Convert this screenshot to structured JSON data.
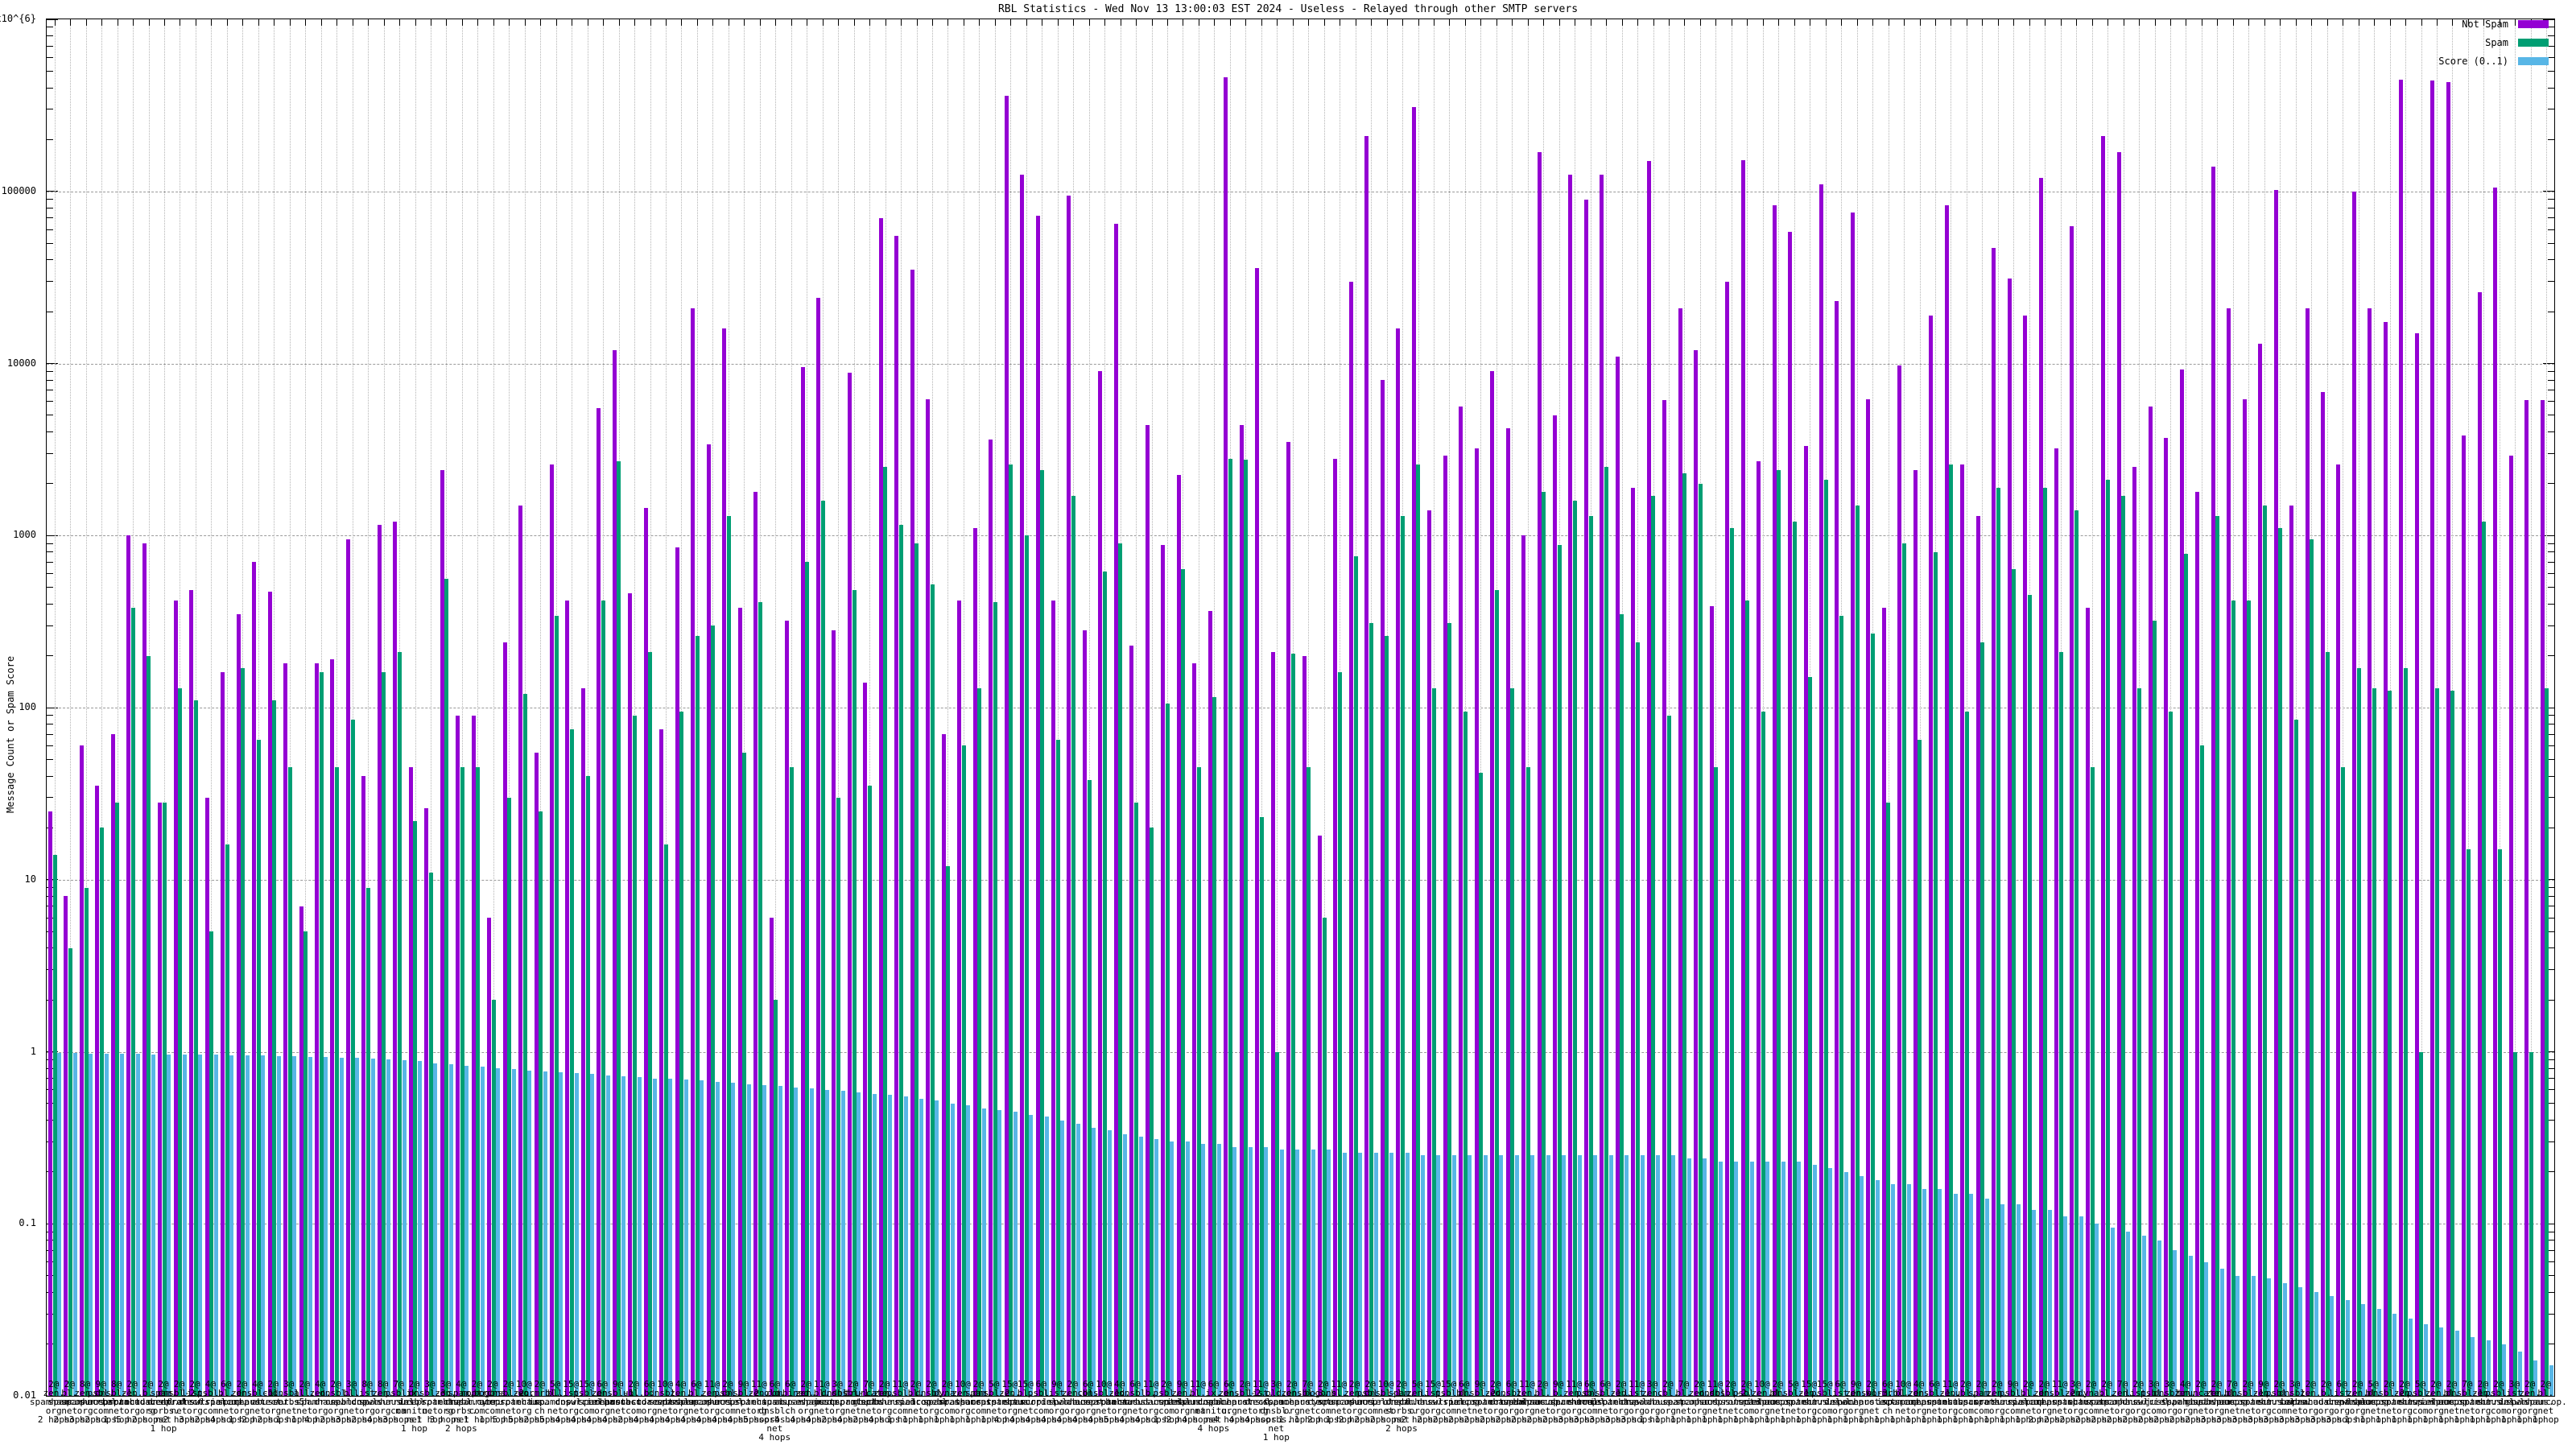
{
  "chart_data": {
    "type": "bar",
    "title": "RBL Statistics - Wed Nov 13 13:00:03 EST 2024 - Useless - Relayed through other SMTP servers",
    "ylabel": "Message Count or Spam Score",
    "xlabel": "",
    "scale": "log",
    "ylim": [
      0.01,
      1000000
    ],
    "grid": {
      "horizontal": "dashed-major-decades",
      "vertical": "dotted-per-cluster"
    },
    "legend_position": "top-right-inside",
    "x_label_format": "count@rbl-hostname N hops (label wrapped onto stacked lines)",
    "yticks": [
      {
        "value": 1000000,
        "label": "1x10^{6}"
      },
      {
        "value": 100000,
        "label": "100000"
      },
      {
        "value": 10000,
        "label": "10000"
      },
      {
        "value": 1000,
        "label": "1000"
      },
      {
        "value": 100,
        "label": "100"
      },
      {
        "value": 10,
        "label": "10"
      },
      {
        "value": 1,
        "label": "1"
      },
      {
        "value": 0.1,
        "label": "0.1"
      },
      {
        "value": 0.01,
        "label": "0.01"
      }
    ],
    "series": [
      {
        "name": "Not Spam",
        "color": "#9400d3"
      },
      {
        "name": "Spam",
        "color": "#009e73"
      },
      {
        "name": "Score (0..1)",
        "color": "#58b6e6"
      }
    ],
    "clusters": [
      [
        "2@zen.spamhaus.org 2 hops",
        25,
        14,
        0.98
      ],
      [
        "2@bl.spamcop.net 2 hops",
        8,
        4,
        0.98
      ],
      [
        "8@zen.spamhaus.org 3 hops",
        60,
        9,
        0.97
      ],
      [
        "9@psbl.surriel.com 2 hops",
        35,
        20,
        0.97
      ],
      [
        "8@dnsbl-1.uceprotect.net 1 hop",
        70,
        28,
        0.97
      ],
      [
        "2@zen.spamhaus.org 5 hops",
        1000,
        380,
        0.97
      ],
      [
        "2@b.barracudacentral.org 2 hops",
        900,
        200,
        0.96
      ],
      [
        "2@spam.dnsbl.sorbs.net 1 hop",
        28,
        28,
        0.96
      ],
      [
        "2@dnsbl-2.uceprotect.net 2 hops",
        420,
        130,
        0.96
      ],
      [
        "2@list.dnswl.org 3 hops",
        480,
        110,
        0.96
      ],
      [
        "4@psbl.surriel.com 2 hops",
        30,
        5,
        0.96
      ],
      [
        "6@bl.spamcop.net 4 hops",
        160,
        16,
        0.95
      ],
      [
        "2@zen.spamhaus.org 1 hop",
        350,
        170,
        0.95
      ],
      [
        "4@dnsbl-1.uceprotect.net 2 hops",
        700,
        65,
        0.95
      ],
      [
        "2@cbl.abuseat.org 2 hops",
        470,
        110,
        0.94
      ],
      [
        "3@dnsbl.sorbs.net 1 hop",
        180,
        45,
        0.94
      ],
      [
        "2@all.s5h.net 1 hop",
        7,
        5,
        0.93
      ],
      [
        "4@zen.spamhaus.org 4 hops",
        180,
        160,
        0.93
      ],
      [
        "2@dnsbl.dronebl.org 2 hops",
        190,
        45,
        0.92
      ],
      [
        "3@bl.spamcop.net 3 hops",
        950,
        85,
        0.92
      ],
      [
        "8@list.dnswl.org 2 hops",
        40,
        9,
        0.91
      ],
      [
        "8@zen.spamhaus.org 4 hops",
        1150,
        160,
        0.9
      ],
      [
        "7@psbl.surriel.com 3 hops",
        1200,
        210,
        0.89
      ],
      [
        "2@ix.dnsbl.manitu.net 1 hop",
        45,
        22,
        0.88
      ],
      [
        "3@dnsbl-3.uceprotect.net 1 hop",
        26,
        11,
        0.86
      ],
      [
        "3@zen.spamhaus.org 3 hops",
        2400,
        560,
        0.85
      ],
      [
        "4@spam.dnsbl.sorbs.net 2 hops",
        90,
        45,
        0.83
      ],
      [
        "2@noptr.spamrats.com 1 hop",
        90,
        45,
        0.82
      ],
      [
        "2@bogons.cymru.com 1 hop",
        6,
        2,
        0.8
      ],
      [
        "2@dnsbl-2.uceprotect.net 5 hops",
        240,
        30,
        0.79
      ],
      [
        "10@zen.spamhaus.org 5 hops",
        1500,
        120,
        0.78
      ],
      [
        "2@wormrbl.imp.ch 2 hops",
        55,
        25,
        0.77
      ],
      [
        "5@bl.spamcop.net 5 hops",
        2600,
        340,
        0.76
      ],
      [
        "15@list.dnswl.org 4 hops",
        420,
        75,
        0.75
      ],
      [
        "15@psbl.surriel.com 4 hops",
        130,
        40,
        0.74
      ],
      [
        "6@zen.spamhaus.org 4 hops",
        5500,
        420,
        0.73
      ],
      [
        "9@dnsbl-1.uceprotect.net 4 hops",
        12000,
        2700,
        0.72
      ],
      [
        "2@ubl.unsubscore.com 2 hops",
        460,
        90,
        0.71
      ],
      [
        "6@b.barracudacentral.org 4 hops",
        1450,
        210,
        0.7
      ],
      [
        "10@dnsbl.sorbs.net 4 hops",
        75,
        16,
        0.7
      ],
      [
        "4@zen.spamhaus.org 4 hops",
        850,
        95,
        0.69
      ],
      [
        "6@bl.spamcop.net 4 hops",
        21000,
        260,
        0.68
      ],
      [
        "11@zen.spamhaus.org 4 hops",
        3400,
        300,
        0.67
      ],
      [
        "2@psbl.surriel.com 4 hops",
        16000,
        1300,
        0.66
      ],
      [
        "9@dnsbl-2.uceprotect.net 4 hops",
        380,
        55,
        0.65
      ],
      [
        "11@zen.spamhaus.org 5 hops",
        1800,
        410,
        0.64
      ],
      [
        "6@old.spam.dnsbl.sorbs.net 4 hops",
        6,
        2,
        0.63
      ],
      [
        "6@combined.abuse.ch 4 hops",
        320,
        45,
        0.62
      ],
      [
        "2@zen.spamhaus.org 4 hops",
        9500,
        700,
        0.61
      ],
      [
        "11@bl.spamcop.net 4 hops",
        24000,
        1600,
        0.6
      ],
      [
        "3@dnsbl.justspam.org 2 hops",
        280,
        30,
        0.59
      ],
      [
        "2@dnsbl-1.uceprotect.net 4 hops",
        8800,
        480,
        0.58
      ],
      [
        "7@truncate.gbudb.net 2 hops",
        140,
        35,
        0.57
      ],
      [
        "2@zen.spamhaus.org 4 hops",
        70000,
        2500,
        0.56
      ],
      [
        "11@psbl.surriel.com 1 hop",
        55000,
        1150,
        0.55
      ],
      [
        "2@bl.spamcop.net 1 hop",
        35000,
        900,
        0.53
      ],
      [
        "2@dnsbl.dronebl.org 1 hop",
        6200,
        520,
        0.52
      ],
      [
        "2@dyna.spamrats.com 1 hop",
        70,
        12,
        0.5
      ],
      [
        "10@zen.spamhaus.org 1 hop",
        420,
        60,
        0.49
      ],
      [
        "2@spam.spamrats.com 1 hop",
        1100,
        130,
        0.47
      ],
      [
        "5@dnsbl-2.uceprotect.net 1 hop",
        3600,
        410,
        0.46
      ],
      [
        "15@zen.spamhaus.org 4 hops",
        360000,
        2600,
        0.45
      ],
      [
        "15@bl.spamcop.net 4 hops",
        125000,
        1000,
        0.43
      ],
      [
        "6@psbl.surriel.com 4 hops",
        72000,
        2400,
        0.42
      ],
      [
        "9@list.dnswl.org 4 hops",
        420,
        65,
        0.4
      ],
      [
        "2@zen.spamhaus.org 4 hops",
        95000,
        1700,
        0.38
      ],
      [
        "6@cbl.abuseat.org 4 hops",
        280,
        38,
        0.36
      ],
      [
        "10@dnsbl-1.uceprotect.net 4 hops",
        9000,
        620,
        0.35
      ],
      [
        "4@zen.spamhaus.org 5 hops",
        65000,
        900,
        0.33
      ],
      [
        "6@dnsbl.sorbs.net 4 hops",
        230,
        28,
        0.32
      ],
      [
        "11@b.barracudacentral.org 4 hops",
        4400,
        20,
        0.31
      ],
      [
        "2@psbl.surriel.com 1 hop",
        880,
        105,
        0.3
      ],
      [
        "9@zen.spamhaus.org 2 hops",
        2250,
        640,
        0.3
      ],
      [
        "11@bl.spamcop.net 4 hops",
        180,
        45,
        0.29
      ],
      [
        "6@ix.dnsbl.manitu.net 4 hops",
        365,
        115,
        0.29
      ],
      [
        "6@zen.spamhaus.org 4 hops",
        460000,
        2800,
        0.28
      ],
      [
        "2@dnsbl-2.uceprotect.net 4 hops",
        4400,
        2750,
        0.28
      ],
      [
        "11@list.dnswl.org 4 hops",
        35700,
        23,
        0.28
      ],
      [
        "3@old.spam.dnsbl.sorbs.net 1 hop",
        210,
        1,
        0.27
      ],
      [
        "2@zen.spamhaus.org 1 hop",
        3500,
        205,
        0.27
      ],
      [
        "7@dnsbl-3.uceprotect.net 1 hop",
        200,
        45,
        0.27
      ],
      [
        "2@bogons.cymru.com 2 hops",
        18,
        6,
        0.27
      ],
      [
        "11@bl.spamcop.net 1 hop",
        2800,
        160,
        0.26
      ],
      [
        "2@zen.spamhaus.org 2 hops",
        30000,
        760,
        0.26
      ],
      [
        "2@psbl.surriel.com 2 hops",
        210000,
        310,
        0.26
      ],
      [
        "10@dnsbl-1.uceprotect.net 2 hops",
        8000,
        260,
        0.26
      ],
      [
        "2@spam.dnsbl.sorbs.net 2 hops",
        16000,
        1300,
        0.26
      ],
      [
        "5@zen.spamhaus.org 2 hops",
        310000,
        2600,
        0.25
      ],
      [
        "15@list.dnswl.org 2 hops",
        1400,
        130,
        0.25
      ],
      [
        "15@psbl.surriel.com 2 hops",
        2900,
        310,
        0.25
      ],
      [
        "6@bl.spamcop.net 2 hops",
        5600,
        95,
        0.25
      ],
      [
        "9@dnsbl-2.uceprotect.net 2 hops",
        3200,
        42,
        0.25
      ],
      [
        "2@zen.spamhaus.org 2 hops",
        9000,
        480,
        0.25
      ],
      [
        "6@dnsbl.dronebl.org 2 hops",
        4200,
        130,
        0.25
      ],
      [
        "11@zen.spamhaus.org 2 hops",
        1000,
        45,
        0.25
      ],
      [
        "2@bl.spamcop.net 2 hops",
        170000,
        1800,
        0.25
      ],
      [
        "9@b.barracudacentral.org 2 hops",
        5000,
        880,
        0.25
      ],
      [
        "11@zen.spamhaus.org 3 hops",
        125000,
        1600,
        0.25
      ],
      [
        "6@psbl.surriel.com 3 hops",
        90000,
        1300,
        0.25
      ],
      [
        "6@dnsbl-1.uceprotect.net 3 hops",
        125000,
        2500,
        0.25
      ],
      [
        "2@zen.spamhaus.org 3 hops",
        11000,
        350,
        0.25
      ],
      [
        "11@list.dnswl.org 3 hops",
        1900,
        240,
        0.25
      ],
      [
        "3@zen.spamhaus.org 1 hop",
        150000,
        1700,
        0.25
      ],
      [
        "2@cbl.abuseat.org 1 hop",
        6100,
        90,
        0.25
      ],
      [
        "7@bl.spamcop.net 1 hop",
        21000,
        2300,
        0.24
      ],
      [
        "2@zen.spamhaus.org 1 hop",
        12000,
        2000,
        0.24
      ],
      [
        "11@dnsbl.sorbs.net 1 hop",
        390,
        45,
        0.23
      ],
      [
        "2@dnsbl-2.uceprotect.net 1 hop",
        30000,
        1100,
        0.23
      ],
      [
        "2@psbl.surriel.com 1 hop",
        152000,
        420,
        0.23
      ],
      [
        "10@zen.spamhaus.org 1 hop",
        2700,
        95,
        0.23
      ],
      [
        "2@bl.spamcop.net 1 hop",
        83000,
        2400,
        0.23
      ],
      [
        "5@dnsbl-1.uceprotect.net 1 hop",
        58000,
        1200,
        0.23
      ],
      [
        "15@zen.spamhaus.org 1 hop",
        3300,
        150,
        0.22
      ],
      [
        "15@psbl.surriel.com 1 hop",
        110000,
        2100,
        0.21
      ],
      [
        "6@list.dnswl.org 1 hop",
        23000,
        340,
        0.2
      ],
      [
        "9@zen.spamhaus.org 1 hop",
        75000,
        1500,
        0.19
      ],
      [
        "2@dnsbl-3.uceprotect.net 1 hop",
        6200,
        270,
        0.18
      ],
      [
        "6@wormrbl.imp.ch 1 hop",
        380,
        28,
        0.17
      ],
      [
        "10@bl.spamcop.net 1 hop",
        9700,
        900,
        0.17
      ],
      [
        "4@zen.spamhaus.org 1 hop",
        2400,
        65,
        0.16
      ],
      [
        "6@dnsbl-1.uceprotect.net 1 hop",
        19000,
        800,
        0.16
      ],
      [
        "11@zen.spamhaus.org 1 hop",
        83000,
        2600,
        0.15
      ],
      [
        "2@ubl.unsubscore.com 1 hop",
        2600,
        95,
        0.15
      ],
      [
        "2@spam.spamrats.com 1 hop",
        1300,
        240,
        0.14
      ],
      [
        "2@zen.spamhaus.org 1 hop",
        47000,
        1900,
        0.13
      ],
      [
        "9@psbl.surriel.com 1 hop",
        31000,
        640,
        0.13
      ],
      [
        "2@bl.spamcop.net 1 hop",
        19000,
        450,
        0.12
      ],
      [
        "2@zen.spamhaus.org 2 hops",
        120000,
        1900,
        0.12
      ],
      [
        "11@dnsbl-2.uceprotect.net 2 hops",
        3200,
        210,
        0.11
      ],
      [
        "3@zen.spamhaus.org 2 hops",
        63000,
        1400,
        0.11
      ],
      [
        "2@dyna.spamrats.com 2 hops",
        380,
        45,
        0.1
      ],
      [
        "2@bl.spamcop.net 2 hops",
        210000,
        2100,
        0.095
      ],
      [
        "7@zen.spamhaus.org 2 hops",
        170000,
        1700,
        0.09
      ],
      [
        "2@list.dnswl.org 2 hops",
        2500,
        130,
        0.085
      ],
      [
        "3@psbl.surriel.com 2 hops",
        5600,
        320,
        0.08
      ],
      [
        "3@dnsbl.justspam.org 2 hops",
        3700,
        95,
        0.07
      ],
      [
        "4@zen.spamhaus.org 2 hops",
        9200,
        780,
        0.065
      ],
      [
        "2@truncate.gbudb.net 2 hops",
        1800,
        60,
        0.06
      ],
      [
        "2@zen.spamhaus.org 3 hops",
        140000,
        1300,
        0.055
      ],
      [
        "7@bl.spamcop.net 3 hops",
        21000,
        420,
        0.05
      ],
      [
        "2@dnsbl-1.uceprotect.net 3 hops",
        6200,
        420,
        0.05
      ],
      [
        "9@zen.spamhaus.org 3 hops",
        13000,
        1500,
        0.048
      ],
      [
        "2@psbl.surriel.com 3 hops",
        102000,
        1100,
        0.045
      ],
      [
        "3@dnsbl.sorbs.net 3 hops",
        1500,
        85,
        0.043
      ],
      [
        "2@zen.spamhaus.org 3 hops",
        21000,
        950,
        0.04
      ],
      [
        "2@b.barracudacentral.org 3 hops",
        6800,
        210,
        0.038
      ],
      [
        "6@list.dnswl.org 3 hops",
        2600,
        45,
        0.036
      ],
      [
        "2@zen.spamhaus.org 1 hop",
        100000,
        170,
        0.034
      ],
      [
        "5@bl.spamcop.net 1 hop",
        21000,
        130,
        0.032
      ],
      [
        "2@dnsbl-2.uceprotect.net 1 hop",
        17500,
        125,
        0.03
      ],
      [
        "2@zen.spamhaus.org 1 hop",
        445000,
        170,
        0.028
      ],
      [
        "5@psbl.surriel.com 1 hop",
        15000,
        1,
        0.026
      ],
      [
        "2@zen.spamhaus.org 1 hop",
        440000,
        130,
        0.025
      ],
      [
        "2@bl.spamcop.net 1 hop",
        430000,
        125,
        0.024
      ],
      [
        "7@dnsbl-1.uceprotect.net 1 hop",
        3800,
        15,
        0.022
      ],
      [
        "2@zen.spamhaus.org 1 hop",
        26000,
        1200,
        0.021
      ],
      [
        "2@psbl.surriel.com 1 hop",
        105000,
        15,
        0.02
      ],
      [
        "3@list.dnswl.org 1 hop",
        2900,
        1,
        0.018
      ],
      [
        "2@zen.spamhaus.org 1 hop",
        6100,
        1,
        0.016
      ],
      [
        "2@bl.spamcop.net 1 hop",
        6100,
        130,
        0.015
      ]
    ]
  }
}
